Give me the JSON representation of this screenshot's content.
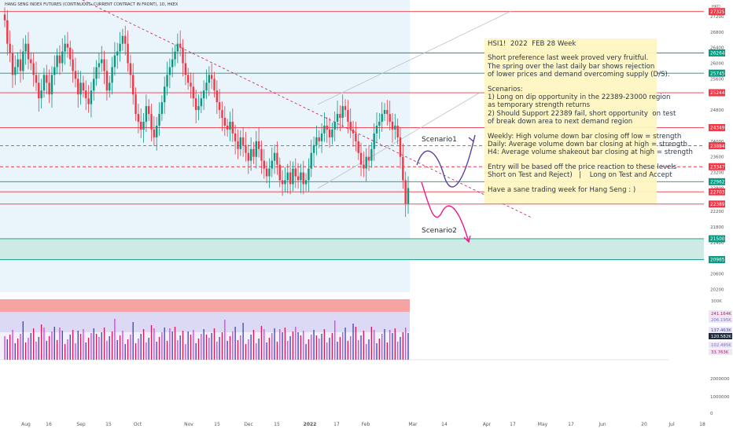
{
  "header": "HANG SENG INDEX FUTURES (CONTINUOUS: CURRENT CONTRACT IN FRONT), 1D, HKEX",
  "currency": "HKD",
  "annotation": {
    "title": "HSI1!  2022  FEB 28 Week",
    "p1": [
      "Short preference last week proved very fruitful.",
      "The spring over the last daily bar shows rejection",
      "of lower prices and demand overcoming supply (D/S)."
    ],
    "p2": [
      "Scenarios:",
      "1) Long on dip opportunity in the 22389-23000 region",
      "as temporary strength returns",
      "2) Should Support 22389 fail, short opportunity  on test",
      "of break down area to next demand region"
    ],
    "p3": [
      "Weekly: High volume down bar closing off low = strength",
      "Daily: Average volume down bar closing at high = strength",
      "H4: Average volume shakeout bar closing at high = strength"
    ],
    "p4": [
      "Entry will be based off the price reaction to these levels",
      "Short on Test and Reject)   |    Long on Test and Accept"
    ],
    "p5": [
      "Have a sane trading week for Hang Seng : )"
    ]
  },
  "scenario_labels": {
    "s1": "Scenario1",
    "s2": "Scenario2"
  },
  "chart_data": {
    "type": "candlestick",
    "x_labels": [
      "Aug",
      "16",
      "Sep",
      "15",
      "Oct",
      "Nov",
      "15",
      "Dec",
      "15",
      "2022",
      "17",
      "Feb",
      "Mar",
      "14",
      "Apr",
      "17",
      "May",
      "17",
      "Jun",
      "20",
      "Jul",
      "18"
    ],
    "price_ticks": [
      27200,
      26800,
      26400,
      26000,
      25600,
      25200,
      24800,
      24400,
      24000,
      23600,
      23200,
      22800,
      22400,
      22200,
      21800,
      21400,
      21000,
      20600,
      20200
    ],
    "ylim": [
      20130,
      27500
    ],
    "levels": [
      {
        "value": 27325,
        "label": "27325",
        "color": "#f23645"
      },
      {
        "value": 26264,
        "label": "26264",
        "color": "#089981"
      },
      {
        "value": 25745,
        "label": "25745",
        "color": "#089981"
      },
      {
        "value": 25244,
        "label": "25244",
        "color": "#f23645"
      },
      {
        "value": 24349,
        "label": "24349",
        "color": "#f23645"
      },
      {
        "value": 23884,
        "label": "23884",
        "color": "#f23645"
      },
      {
        "value": 23347,
        "label": "23347",
        "color": "#f23645"
      },
      {
        "value": 22962,
        "label": "22962",
        "color": "#089981"
      },
      {
        "value": 22703,
        "label": "22703",
        "color": "#f23645"
      },
      {
        "value": 22389,
        "label": "22389",
        "color": "#f23645"
      },
      {
        "value": 21500,
        "label": "21500",
        "color": "#089981"
      },
      {
        "value": 20965,
        "label": "20965",
        "color": "#089981"
      }
    ],
    "demand_zone": [
      20965,
      21500
    ],
    "closes": [
      27100,
      26500,
      26250,
      25700,
      25900,
      26100,
      25800,
      26300,
      26500,
      26100,
      26000,
      25700,
      25500,
      25100,
      25300,
      25700,
      25500,
      25200,
      25700,
      25900,
      26200,
      26000,
      26300,
      26500,
      26400,
      26100,
      25800,
      25600,
      25200,
      25500,
      25300,
      25100,
      24950,
      25300,
      25600,
      25900,
      26000,
      26100,
      25800,
      25300,
      25500,
      25900,
      26200,
      26300,
      26500,
      26700,
      26500,
      26000,
      25700,
      25200,
      24700,
      24500,
      24300,
      24500,
      24900,
      24700,
      24300,
      24100,
      24400,
      24700,
      25000,
      25400,
      25700,
      25900,
      26100,
      26300,
      26500,
      26400,
      26000,
      25700,
      25500,
      25400,
      25100,
      24800,
      24900,
      25100,
      25300,
      25500,
      25700,
      25600,
      25300,
      25000,
      24800,
      24600,
      24400,
      24300,
      24500,
      24200,
      24000,
      23800,
      24100,
      23900,
      23700,
      23500,
      23800,
      23600,
      24000,
      23800,
      23500,
      23300,
      23100,
      23300,
      23500,
      23700,
      23400,
      23000,
      22900,
      23000,
      23200,
      22900,
      23300,
      23100,
      23000,
      23200,
      22900,
      23000,
      23300,
      23700,
      23900,
      24100,
      24000,
      24200,
      24400,
      24300,
      24100,
      24300,
      24500,
      24700,
      24600,
      24900,
      24800,
      24500,
      24300,
      24200,
      24000,
      23700,
      23400,
      23300,
      23600,
      23500,
      23800,
      24200,
      24400,
      24500,
      24700,
      24800,
      24700,
      24500,
      24300,
      24400,
      24100,
      23600,
      23000,
      22400,
      22800
    ],
    "volume_ticks": [
      "300K",
      "241.164K",
      "206.195K",
      "137.463K",
      "120.582K",
      "102.495K",
      "33.763K"
    ],
    "volume_axis": [
      "2000000",
      "1000000",
      "0"
    ]
  }
}
